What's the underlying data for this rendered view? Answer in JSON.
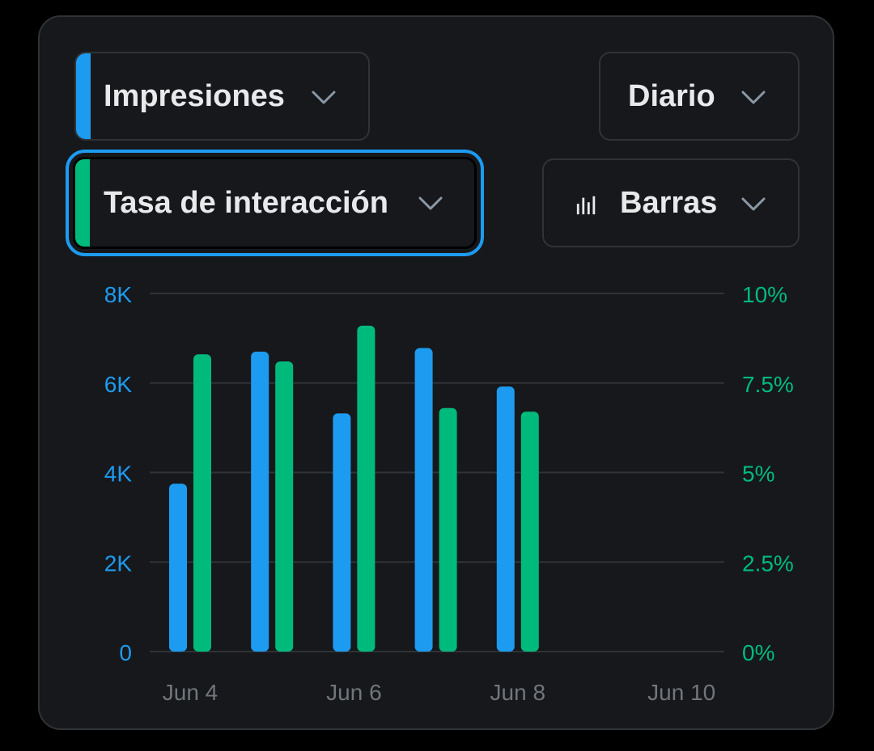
{
  "controls": {
    "metric1": {
      "label": "Impresiones",
      "color": "#1d9bf0"
    },
    "metric2": {
      "label": "Tasa de interacción",
      "color": "#00ba7c"
    },
    "period": {
      "label": "Diario"
    },
    "chart_type": {
      "label": "Barras",
      "icon": "bar-chart-icon"
    }
  },
  "chart_data": {
    "type": "bar",
    "categories": [
      "Jun 4",
      "Jun 5",
      "Jun 6",
      "Jun 7",
      "Jun 8"
    ],
    "x_tick_labels": [
      "Jun 4",
      "Jun 6",
      "Jun 8",
      "Jun 10"
    ],
    "series": [
      {
        "name": "Impresiones",
        "axis": "left",
        "color": "#1d9bf0",
        "values": [
          3750,
          6700,
          5320,
          6780,
          5920
        ]
      },
      {
        "name": "Tasa de interacción",
        "axis": "right",
        "color": "#00ba7c",
        "values": [
          8.3,
          8.1,
          9.1,
          6.8,
          6.7
        ]
      }
    ],
    "y_left": {
      "ticks": [
        "0",
        "2K",
        "4K",
        "6K",
        "8K"
      ],
      "ylim": [
        0,
        8000
      ],
      "color": "#1d9bf0"
    },
    "y_right": {
      "ticks": [
        "0%",
        "2.5%",
        "5%",
        "7.5%",
        "10%"
      ],
      "ylim": [
        0,
        10
      ],
      "color": "#00ba7c"
    },
    "grid": true
  }
}
